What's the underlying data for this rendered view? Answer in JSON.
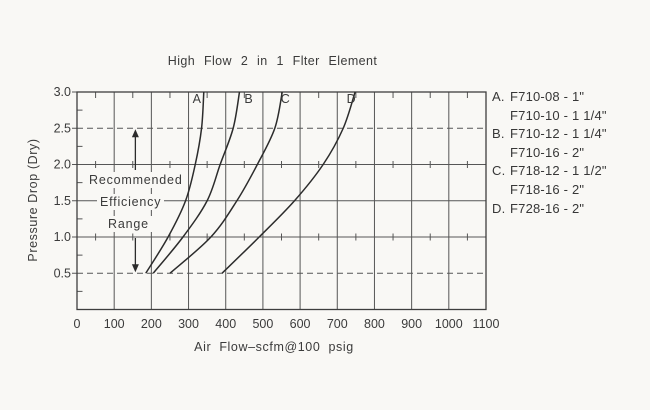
{
  "chart_data": {
    "type": "line",
    "title": "High Flow 2 in 1 Flter Element",
    "xlabel": "Air Flow–scfm@100 psig",
    "ylabel": "Pressure Drop (Dry)",
    "xlim": [
      0,
      1100
    ],
    "ylim": [
      0,
      3.0
    ],
    "x_ticks": [
      0,
      100,
      200,
      300,
      400,
      500,
      600,
      700,
      800,
      900,
      1000,
      1100
    ],
    "y_ticks": [
      0.5,
      1.0,
      1.5,
      2.0,
      2.5,
      3.0
    ],
    "dashed_y_lines": [
      0.5,
      2.5
    ],
    "grid": "on",
    "legend_position": "right",
    "pressure_points": [
      0.5,
      1.0,
      1.5,
      2.0,
      2.5,
      3.0
    ],
    "series": [
      {
        "name": "A",
        "flow_scfm": [
          185,
          245,
          292,
          318,
          335,
          341
        ]
      },
      {
        "name": "B",
        "flow_scfm": [
          205,
          285,
          350,
          385,
          420,
          437
        ]
      },
      {
        "name": "C",
        "flow_scfm": [
          250,
          360,
          430,
          485,
          532,
          552
        ]
      },
      {
        "name": "D",
        "flow_scfm": [
          390,
          490,
          585,
          662,
          716,
          748
        ]
      }
    ],
    "annotation": {
      "lines": [
        "Recommended",
        "Efficiency",
        "Range"
      ],
      "range_pressure": [
        0.5,
        2.5
      ],
      "arrow_x_scfm": 157
    }
  },
  "legend": {
    "entries": [
      {
        "letter": "A.",
        "model": "F710-08 - 1\""
      },
      {
        "letter": "",
        "model": "F710-10 - 1 1/4\""
      },
      {
        "letter": "B.",
        "model": "F710-12 - 1 1/4\""
      },
      {
        "letter": "",
        "model": "F710-16 - 2\""
      },
      {
        "letter": "C.",
        "model": "F718-12 - 1 1/2\""
      },
      {
        "letter": "",
        "model": "F718-16 - 2\""
      },
      {
        "letter": "D.",
        "model": "F728-16 - 2\""
      }
    ]
  },
  "colors": {
    "background": "#f9f8f5",
    "grid": "#565656",
    "curve": "#2c2c2c",
    "ink": "#3b3b3b"
  }
}
